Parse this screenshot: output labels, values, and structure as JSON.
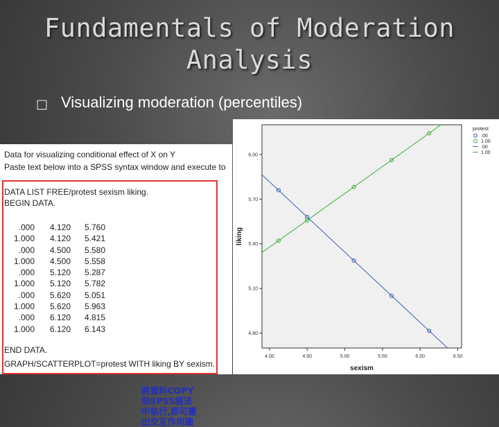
{
  "slide": {
    "title_line1": "Fundamentals of Moderation",
    "title_line2": "Analysis",
    "bullet_glyph": "□",
    "bullet_text": "Visualizing moderation (percentiles)"
  },
  "syntax": {
    "header_line1": "Data for visualizing conditional effect of X on Y",
    "header_line2": "Paste text below into a SPSS syntax window and execute to",
    "data_list": "DATA LIST FREE/protest sexism liking.",
    "begin": "BEGIN DATA.",
    "rows": [
      [
        ".000",
        "4.120",
        "5.760"
      ],
      [
        "1.000",
        "4.120",
        "5.421"
      ],
      [
        ".000",
        "4.500",
        "5.580"
      ],
      [
        "1.000",
        "4.500",
        "5.558"
      ],
      [
        ".000",
        "5.120",
        "5.287"
      ],
      [
        "1.000",
        "5.120",
        "5.782"
      ],
      [
        ".000",
        "5.620",
        "5.051"
      ],
      [
        "1.000",
        "5.620",
        "5.963"
      ],
      [
        ".000",
        "6.120",
        "4.815"
      ],
      [
        "1.000",
        "6.120",
        "6.143"
      ]
    ],
    "end": "END DATA.",
    "graph_cmd": "GRAPH/SCATTERPLOT=protest WITH liking BY sexism.",
    "note_lines": [
      "將資料COPY",
      "到SPSS語法",
      "中執行,即可畫",
      "出交互作用圖"
    ]
  },
  "chart_data": {
    "type": "scatter",
    "xlabel": "sexism",
    "ylabel": "liking",
    "xlim": [
      3.9,
      6.55
    ],
    "ylim": [
      4.7,
      6.2
    ],
    "xticks": [
      4.0,
      4.5,
      5.0,
      5.5,
      6.0,
      6.5
    ],
    "xtick_labels": [
      "4.00",
      "4.50",
      "5.00",
      "5.50",
      "6.00",
      "6.50"
    ],
    "yticks": [
      4.8,
      5.1,
      5.4,
      5.7,
      6.0
    ],
    "ytick_labels": [
      "4.80",
      "5.10",
      "5.40",
      "5.70",
      "6.00"
    ],
    "legend_title": "protest",
    "legend_position": "top-right",
    "series": [
      {
        "name": ".00",
        "color": "#3c5fb0",
        "x": [
          4.12,
          4.5,
          5.12,
          5.62,
          6.12
        ],
        "y": [
          5.76,
          5.58,
          5.287,
          5.051,
          4.815
        ]
      },
      {
        "name": "1.00",
        "color": "#3daa3d",
        "x": [
          4.12,
          4.5,
          5.12,
          5.62,
          6.12
        ],
        "y": [
          5.421,
          5.558,
          5.782,
          5.963,
          6.143
        ]
      }
    ],
    "fit_lines": [
      {
        "name": ".00",
        "color": "#3c5fb0",
        "slope": -0.4725,
        "intercept": 7.7067
      },
      {
        "name": "1.00",
        "color": "#3daa3d",
        "slope": 0.361,
        "intercept": 3.9337
      }
    ]
  }
}
